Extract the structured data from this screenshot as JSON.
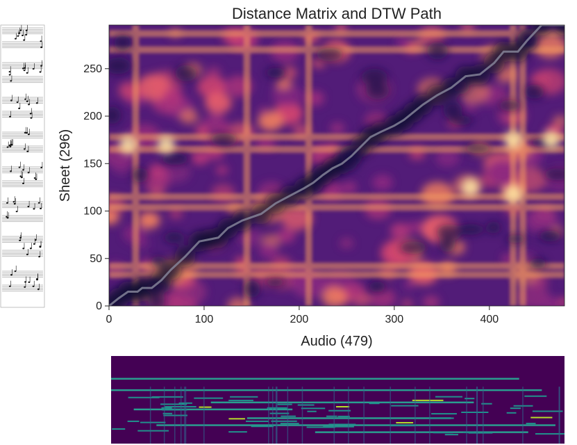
{
  "chart_data": [
    {
      "type": "heatmap",
      "title": "Distance Matrix and DTW Path",
      "xlabel": "Audio (479)",
      "ylabel": "Sheet (296)",
      "xlim": [
        0,
        479
      ],
      "ylim": [
        0,
        296
      ],
      "x_ticks": [
        0,
        100,
        200,
        300,
        400
      ],
      "y_ticks": [
        0,
        50,
        100,
        150,
        200,
        250
      ],
      "colormap": "magma",
      "series": [
        {
          "name": "DTW Path",
          "color": "#8a8a9e",
          "points": [
            [
              0,
              0
            ],
            [
              10,
              8
            ],
            [
              20,
              15
            ],
            [
              30,
              15
            ],
            [
              35,
              19
            ],
            [
              45,
              19
            ],
            [
              55,
              27
            ],
            [
              65,
              38
            ],
            [
              80,
              52
            ],
            [
              95,
              68
            ],
            [
              105,
              70
            ],
            [
              115,
              72
            ],
            [
              125,
              82
            ],
            [
              140,
              90
            ],
            [
              160,
              97
            ],
            [
              175,
              108
            ],
            [
              190,
              116
            ],
            [
              205,
              124
            ],
            [
              215,
              130
            ],
            [
              225,
              138
            ],
            [
              235,
              145
            ],
            [
              245,
              150
            ],
            [
              255,
              158
            ],
            [
              265,
              168
            ],
            [
              275,
              178
            ],
            [
              285,
              183
            ],
            [
              300,
              190
            ],
            [
              310,
              196
            ],
            [
              320,
              204
            ],
            [
              330,
              212
            ],
            [
              345,
              222
            ],
            [
              360,
              230
            ],
            [
              375,
              242
            ],
            [
              390,
              244
            ],
            [
              405,
              256
            ],
            [
              415,
              268
            ],
            [
              430,
              268
            ],
            [
              440,
              280
            ],
            [
              455,
              296
            ],
            [
              479,
              296
            ]
          ]
        }
      ],
      "bright_bands_sheet": [
        33,
        42,
        104,
        115,
        165,
        178,
        270,
        287
      ],
      "bright_bands_audio": [
        28,
        145,
        210,
        425,
        435
      ],
      "hotspots": [
        [
          425,
          175
        ],
        [
          425,
          118
        ],
        [
          380,
          125
        ],
        [
          465,
          175
        ],
        [
          20,
          170
        ],
        [
          60,
          170
        ]
      ]
    },
    {
      "type": "heatmap",
      "title": "",
      "colormap": "viridis",
      "description_rows": 40,
      "note_lines": [
        {
          "row": 0.25,
          "start": 0.0,
          "end": 0.9
        },
        {
          "row": 0.38,
          "start": 0.0,
          "end": 0.95
        },
        {
          "row": 0.52,
          "start": 0.22,
          "end": 0.8
        },
        {
          "row": 0.6,
          "start": 0.05,
          "end": 0.4
        },
        {
          "row": 0.7,
          "start": 0.3,
          "end": 0.75
        },
        {
          "row": 0.78,
          "start": 0.1,
          "end": 0.98
        },
        {
          "row": 0.86,
          "start": 0.45,
          "end": 0.92
        }
      ]
    }
  ],
  "sheet_music": {
    "systems": 8,
    "colors": {
      "ink": "#111111",
      "staff": "#555555"
    }
  }
}
